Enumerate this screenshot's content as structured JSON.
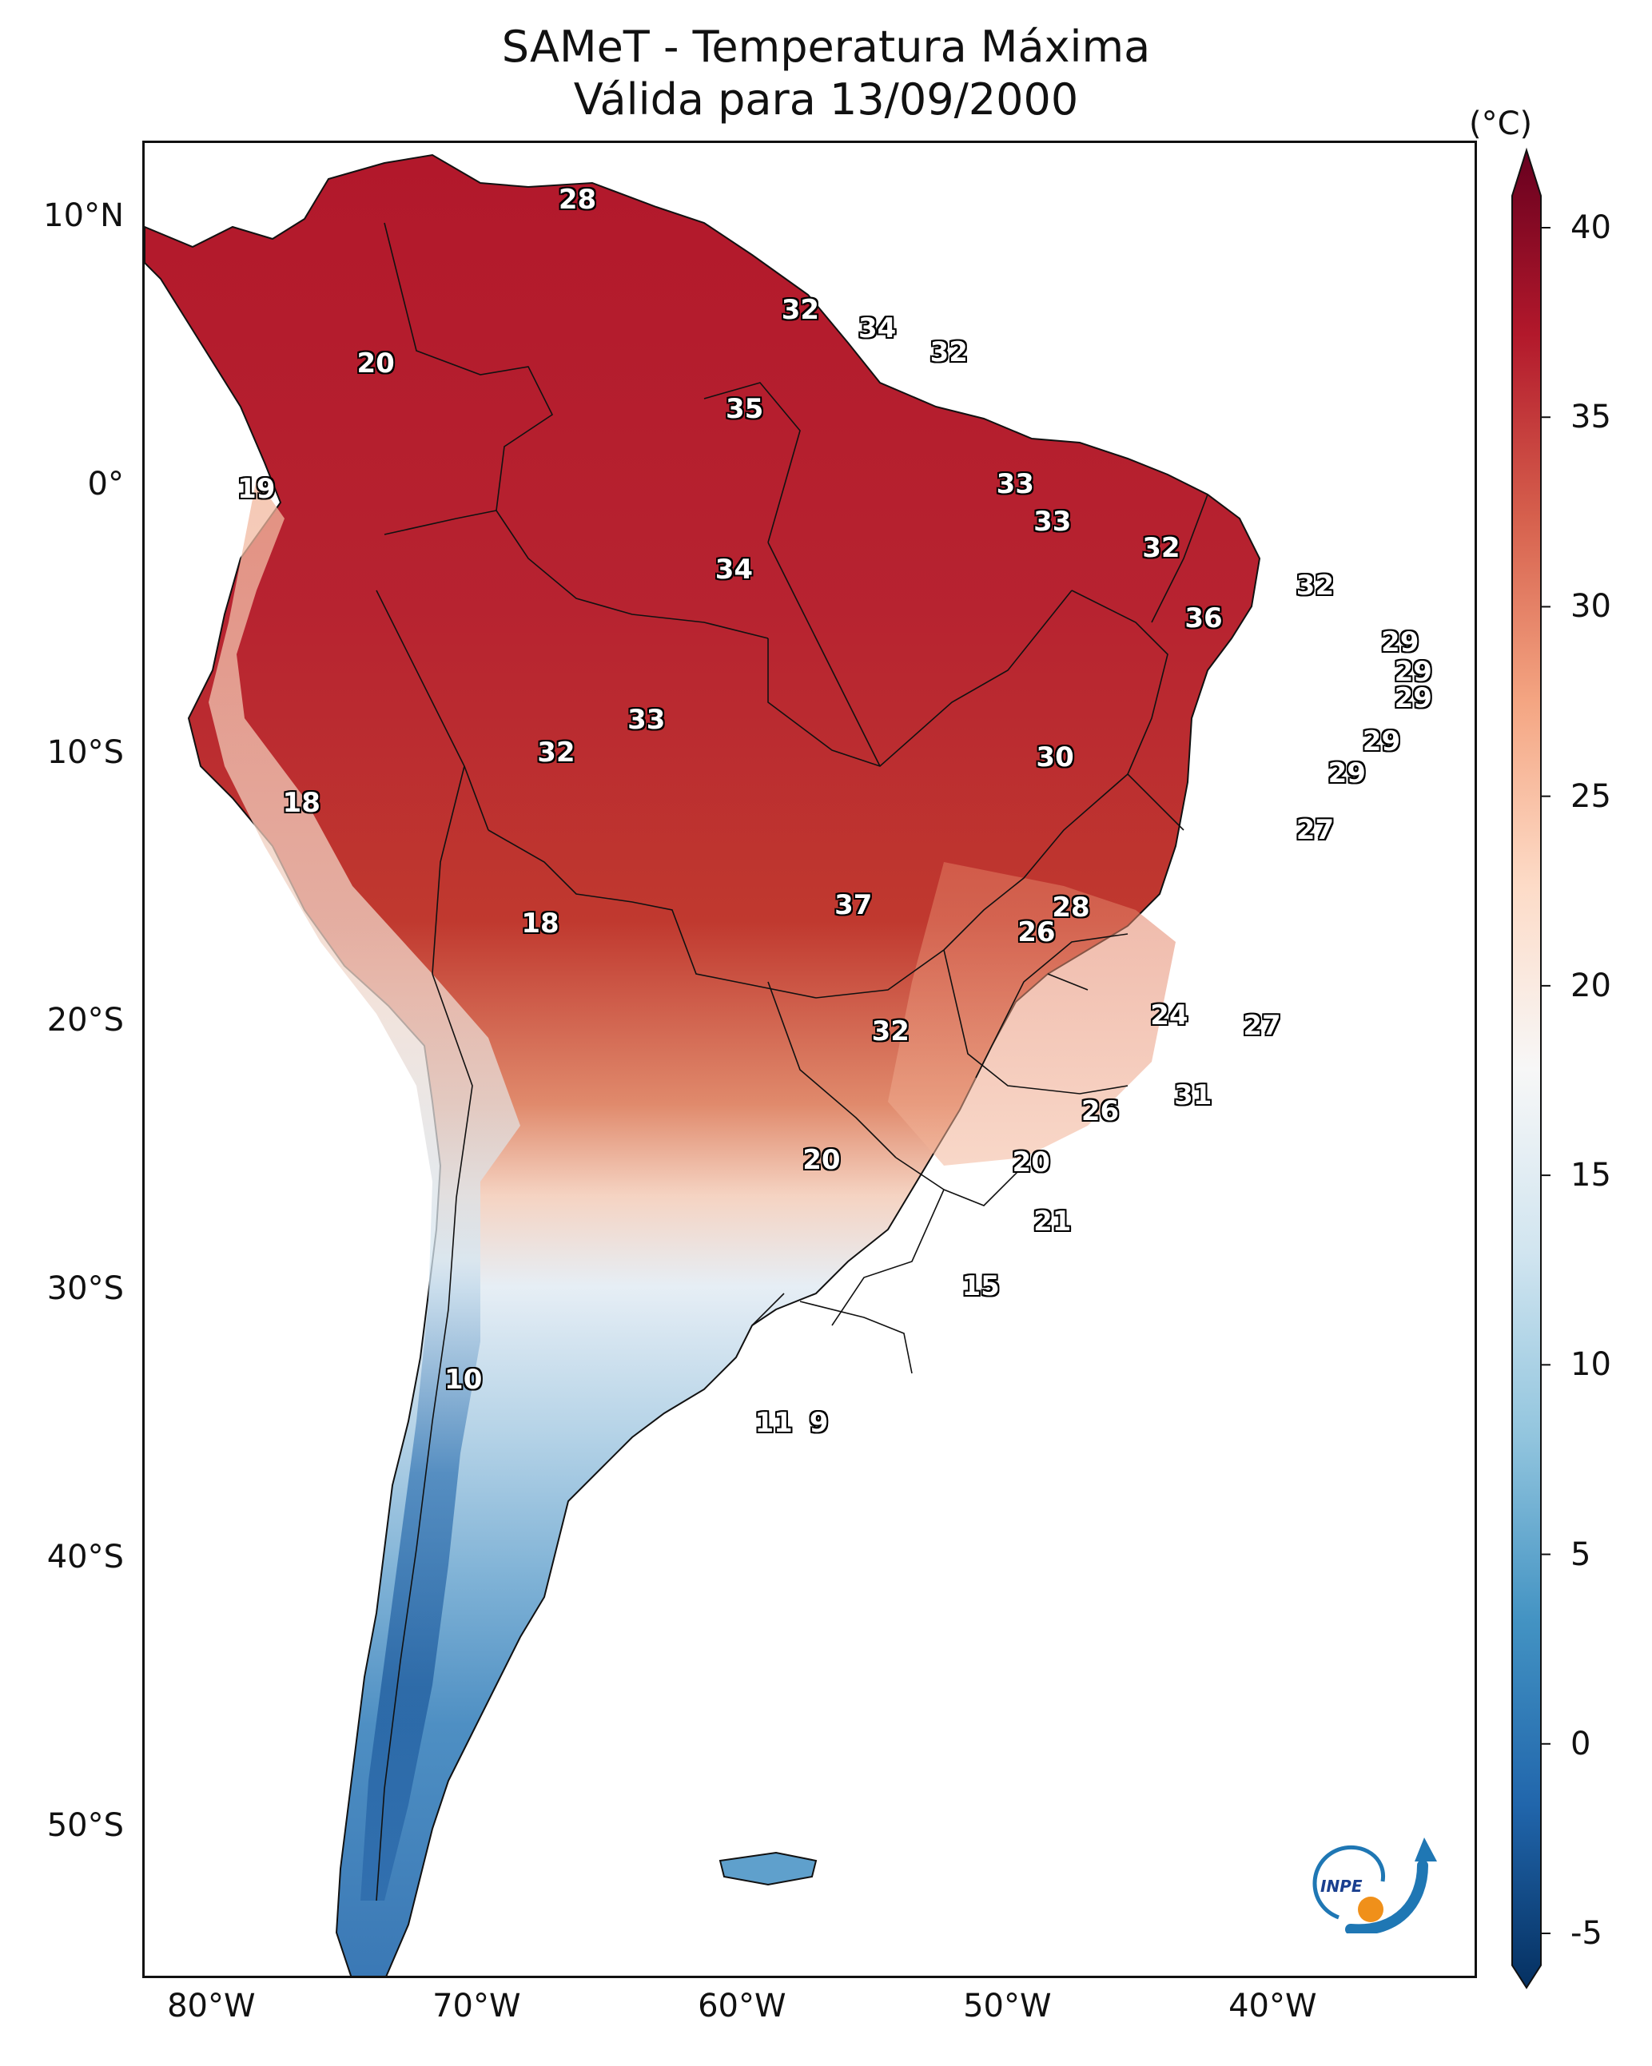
{
  "title": {
    "line1": "SAMeT - Temperatura Máxima",
    "line2": "Válida para 13/09/2000"
  },
  "colorbar": {
    "unit": "(°C)",
    "ticks": [
      "-5",
      "0",
      "5",
      "10",
      "15",
      "20",
      "25",
      "30",
      "35",
      "40"
    ],
    "colors": [
      "#053061",
      "#2166ac",
      "#4393c3",
      "#92c5de",
      "#d1e5f0",
      "#f7f7f7",
      "#fddbc7",
      "#f4a582",
      "#d6604d",
      "#b2182b",
      "#67001f"
    ]
  },
  "axes": {
    "lat_ticks": [
      "10°N",
      "0°",
      "10°S",
      "20°S",
      "30°S",
      "40°S",
      "50°S"
    ],
    "lon_ticks": [
      "80°W",
      "70°W",
      "60°W",
      "50°W",
      "40°W"
    ]
  },
  "logo": {
    "text": "INPE"
  },
  "contour_labels": [
    {
      "text": "28",
      "lon": -66.2,
      "lat": 10.6
    },
    {
      "text": "20",
      "lon": -73.8,
      "lat": 4.5
    },
    {
      "text": "32",
      "lon": -57.8,
      "lat": 6.5
    },
    {
      "text": "34",
      "lon": -54.9,
      "lat": 5.8
    },
    {
      "text": "32",
      "lon": -52.2,
      "lat": 4.9
    },
    {
      "text": "35",
      "lon": -59.9,
      "lat": 2.8
    },
    {
      "text": "19",
      "lon": -78.3,
      "lat": -0.2
    },
    {
      "text": "33",
      "lon": -49.7,
      "lat": 0.0
    },
    {
      "text": "33",
      "lon": -48.3,
      "lat": -1.4
    },
    {
      "text": "34",
      "lon": -60.3,
      "lat": -3.2
    },
    {
      "text": "32",
      "lon": -44.2,
      "lat": -2.4
    },
    {
      "text": "32",
      "lon": -38.4,
      "lat": -3.8
    },
    {
      "text": "36",
      "lon": -42.6,
      "lat": -5.0
    },
    {
      "text": "29",
      "lon": -35.2,
      "lat": -5.9
    },
    {
      "text": "29",
      "lon": -34.7,
      "lat": -7.0
    },
    {
      "text": "29",
      "lon": -34.7,
      "lat": -8.0
    },
    {
      "text": "33",
      "lon": -63.6,
      "lat": -8.8
    },
    {
      "text": "32",
      "lon": -67.0,
      "lat": -10.0
    },
    {
      "text": "30",
      "lon": -48.2,
      "lat": -10.2
    },
    {
      "text": "29",
      "lon": -35.9,
      "lat": -9.6
    },
    {
      "text": "29",
      "lon": -37.2,
      "lat": -10.8
    },
    {
      "text": "18",
      "lon": -76.6,
      "lat": -11.9
    },
    {
      "text": "27",
      "lon": -38.4,
      "lat": -12.9
    },
    {
      "text": "37",
      "lon": -55.8,
      "lat": -15.7
    },
    {
      "text": "28",
      "lon": -47.6,
      "lat": -15.8
    },
    {
      "text": "18",
      "lon": -67.6,
      "lat": -16.4
    },
    {
      "text": "26",
      "lon": -48.9,
      "lat": -16.7
    },
    {
      "text": "24",
      "lon": -43.9,
      "lat": -19.8
    },
    {
      "text": "27",
      "lon": -40.4,
      "lat": -20.2
    },
    {
      "text": "32",
      "lon": -54.4,
      "lat": -20.4
    },
    {
      "text": "31",
      "lon": -43.0,
      "lat": -22.8
    },
    {
      "text": "26",
      "lon": -46.5,
      "lat": -23.4
    },
    {
      "text": "20",
      "lon": -57.0,
      "lat": -25.2
    },
    {
      "text": "20",
      "lon": -49.1,
      "lat": -25.3
    },
    {
      "text": "21",
      "lon": -48.3,
      "lat": -27.5
    },
    {
      "text": "15",
      "lon": -51.0,
      "lat": -29.9
    },
    {
      "text": "10",
      "lon": -70.5,
      "lat": -33.4
    },
    {
      "text": "11",
      "lon": -58.8,
      "lat": -35.0
    },
    {
      "text": "9",
      "lon": -57.1,
      "lat": -35.0
    }
  ]
}
